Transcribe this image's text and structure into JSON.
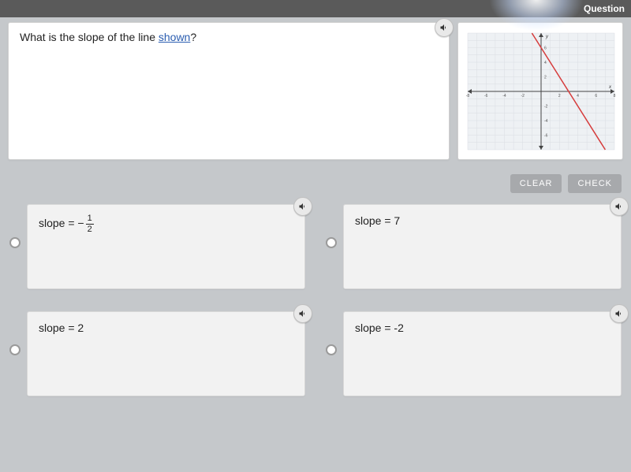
{
  "topbar": {
    "label": "Question"
  },
  "question": {
    "prefix": "What is the slope of the line ",
    "link_text": "shown",
    "suffix": "?"
  },
  "buttons": {
    "clear": "CLEAR",
    "check": "CHECK"
  },
  "answers": [
    {
      "html": "slope = −<span class='frac'><span class='num'>1</span><span class='den'>2</span></span>"
    },
    {
      "html": "slope = 7"
    },
    {
      "html": "slope = 2"
    },
    {
      "html": "slope = -2"
    }
  ],
  "graph": {
    "type": "line",
    "xlim": [
      -8,
      8
    ],
    "ylim": [
      -8,
      8
    ],
    "xtick_step": 2,
    "ytick_step": 2,
    "grid_color": "#d9dde2",
    "axis_color": "#444444",
    "background_color": "#eef1f4",
    "line": {
      "points": [
        [
          -1,
          8
        ],
        [
          7,
          -8
        ]
      ],
      "color": "#d63c3c",
      "width": 1.5
    },
    "tick_labels_x": [
      "-8",
      "-6",
      "-4",
      "-2",
      "2",
      "4",
      "6",
      "8"
    ],
    "tick_labels_y": [
      "-6",
      "-4",
      "-2",
      "2",
      "4",
      "6"
    ],
    "label_fontsize": 5,
    "y_axis_label": "y",
    "x_axis_label": "x"
  },
  "colors": {
    "page_bg": "#c5c8cb",
    "panel_bg": "#ffffff",
    "answer_bg": "#f2f2f2",
    "button_bg": "#a7a9ac"
  }
}
